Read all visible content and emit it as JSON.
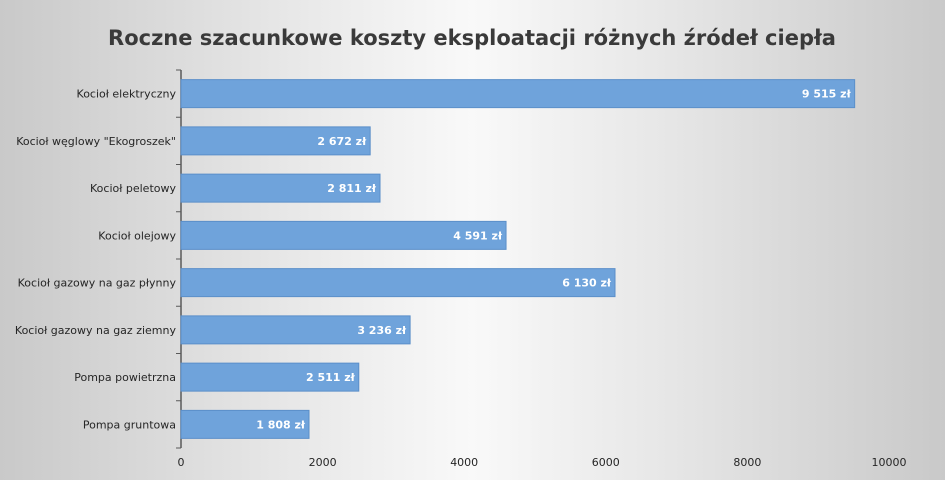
{
  "chart_data": {
    "type": "bar",
    "orientation": "horizontal",
    "title": "Roczne szacunkowe koszty eksploatacji różnych źródeł ciepła",
    "categories": [
      "Kocioł elektryczny",
      "Kocioł węglowy \"Ekogroszek\"",
      "Kocioł peletowy",
      "Kocioł olejowy",
      "Kocioł gazowy na gaz płynny",
      "Kocioł gazowy na gaz ziemny",
      "Pompa powietrzna",
      "Pompa gruntowa"
    ],
    "values": [
      9515,
      2672,
      2811,
      4591,
      6130,
      3236,
      2511,
      1808
    ],
    "value_labels": [
      "9 515 zł",
      "2 672 zł",
      "2 811 zł",
      "4 591 zł",
      "6 130 zł",
      "3 236 zł",
      "2 511 zł",
      "1 808 zł"
    ],
    "xlim": [
      0,
      10000
    ],
    "ticks": [
      0,
      2000,
      4000,
      6000,
      8000,
      10000
    ],
    "tick_labels": [
      "0",
      "2000",
      "4000",
      "6000",
      "8000",
      "10000"
    ],
    "xlabel": "",
    "ylabel": "",
    "grid": false,
    "legend": false,
    "bar_color": "#6fa3db",
    "bar_edge_color": "#5b8fc9"
  }
}
